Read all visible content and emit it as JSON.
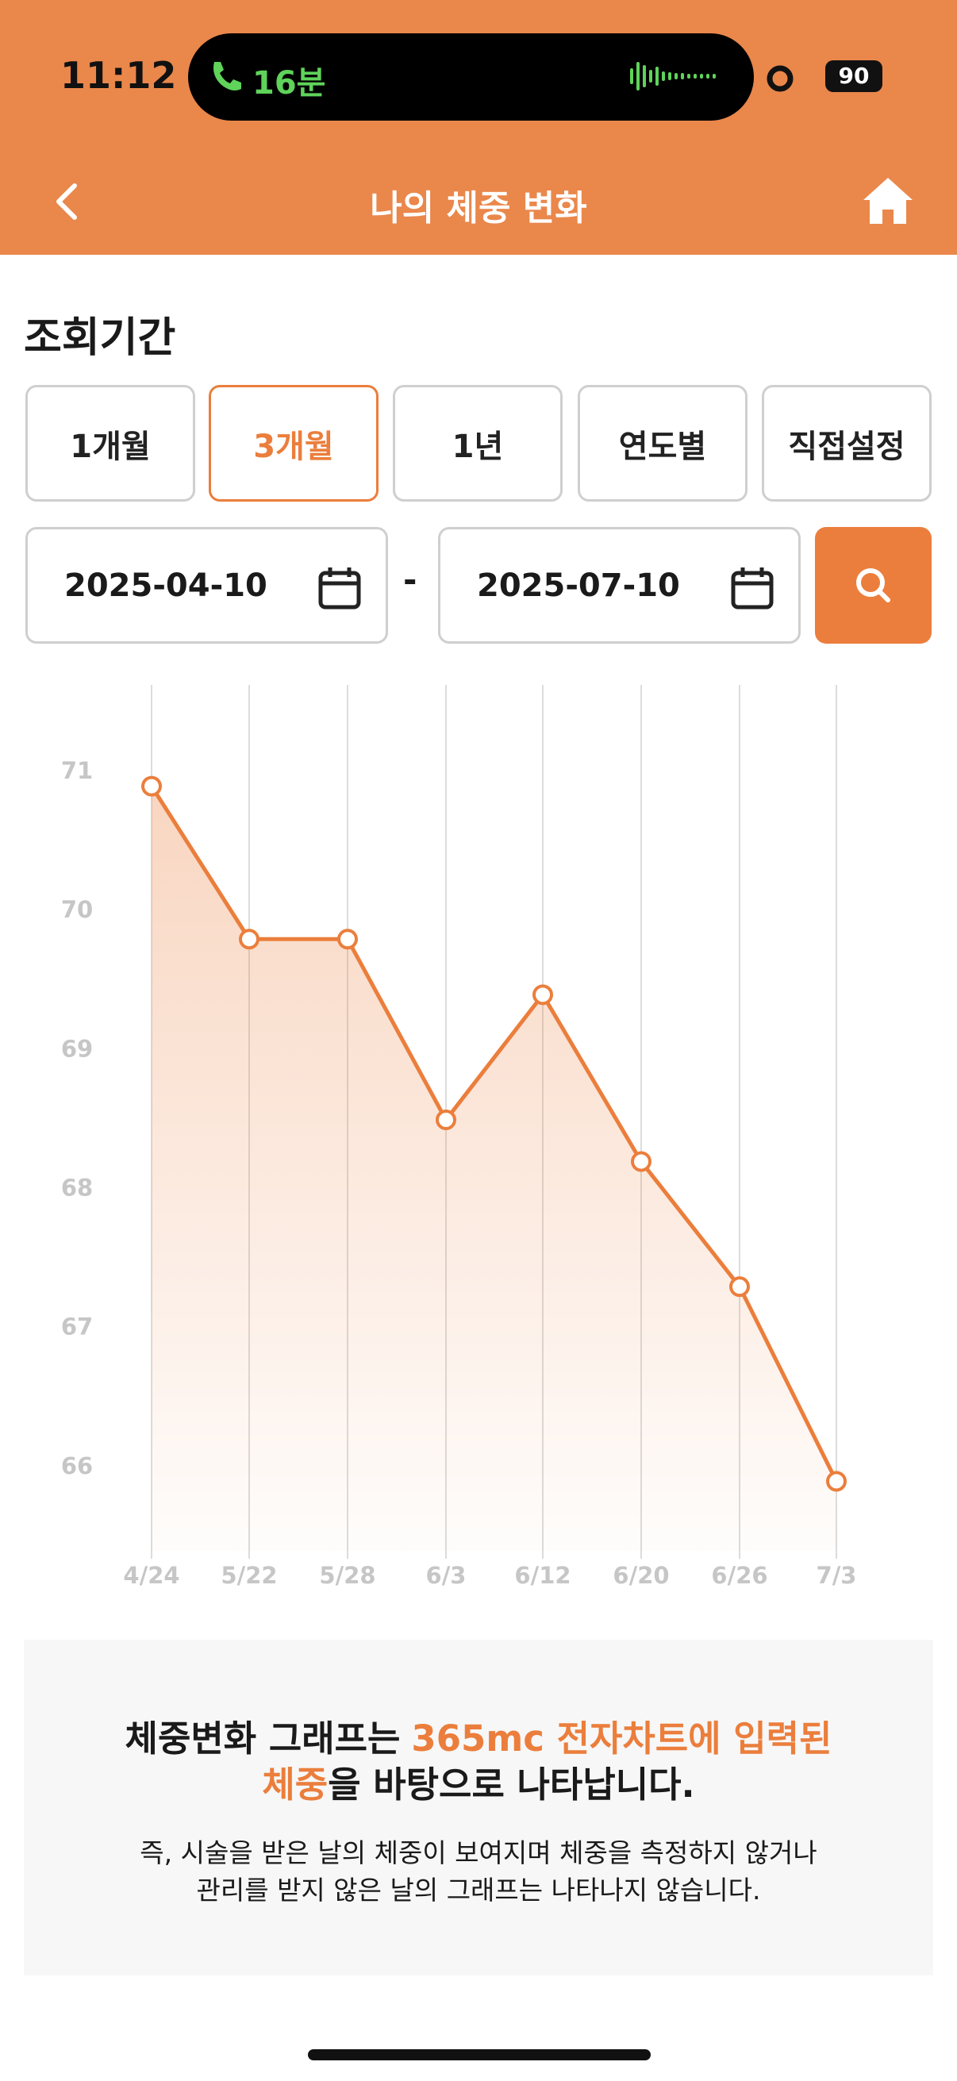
{
  "status_bar": {
    "time": "11:12",
    "call": "16분",
    "battery": "90"
  },
  "header": {
    "title": "나의 체중 변화"
  },
  "period": {
    "label": "조회기간",
    "options": [
      "1개월",
      "3개월",
      "1년",
      "연도별",
      "직접설정"
    ],
    "selected_index": 1
  },
  "date_range": {
    "start": "2025-04-10",
    "separator": "-",
    "end": "2025-07-10"
  },
  "chart_data": {
    "type": "line",
    "color": "#eb7e3c",
    "categories": [
      "4/24",
      "5/22",
      "5/28",
      "6/3",
      "6/12",
      "6/20",
      "6/26",
      "7/3"
    ],
    "values": [
      70.9,
      69.8,
      69.8,
      68.5,
      69.4,
      68.2,
      67.3,
      65.9
    ],
    "ylim": [
      65.4,
      71.4
    ],
    "yticks": [
      66,
      67,
      68,
      69,
      70,
      71
    ],
    "x_grid": true,
    "area_fill": true
  },
  "notice": {
    "headline": [
      [
        "체중변화 그래프는",
        "365mc 전자차트에 입력된"
      ],
      [
        "체중",
        "을 바탕으로 나타납니다."
      ]
    ],
    "body": [
      "즉, 시술을 받은 날의 체중이 보여지며 체중을 측정하지 않거나",
      "관리를 받지 않은 날의 그래프는 나타나지 않습니다."
    ]
  }
}
